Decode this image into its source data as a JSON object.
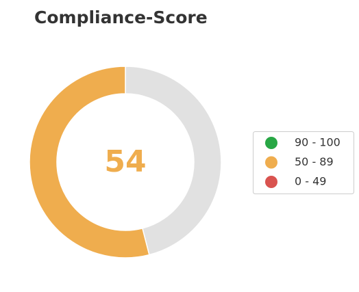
{
  "chart_data": {
    "type": "gauge",
    "title": "Compliance-Score",
    "value": 54,
    "color": "#efad4e",
    "track_color": "#e1e1e1",
    "ylim": [
      0,
      100
    ],
    "series": [
      {
        "name": "90 - 100",
        "color": "#28a745"
      },
      {
        "name": "50 - 89",
        "color": "#efad4e"
      },
      {
        "name": "0 - 49",
        "color": "#d9534f"
      }
    ],
    "legend": "right"
  }
}
